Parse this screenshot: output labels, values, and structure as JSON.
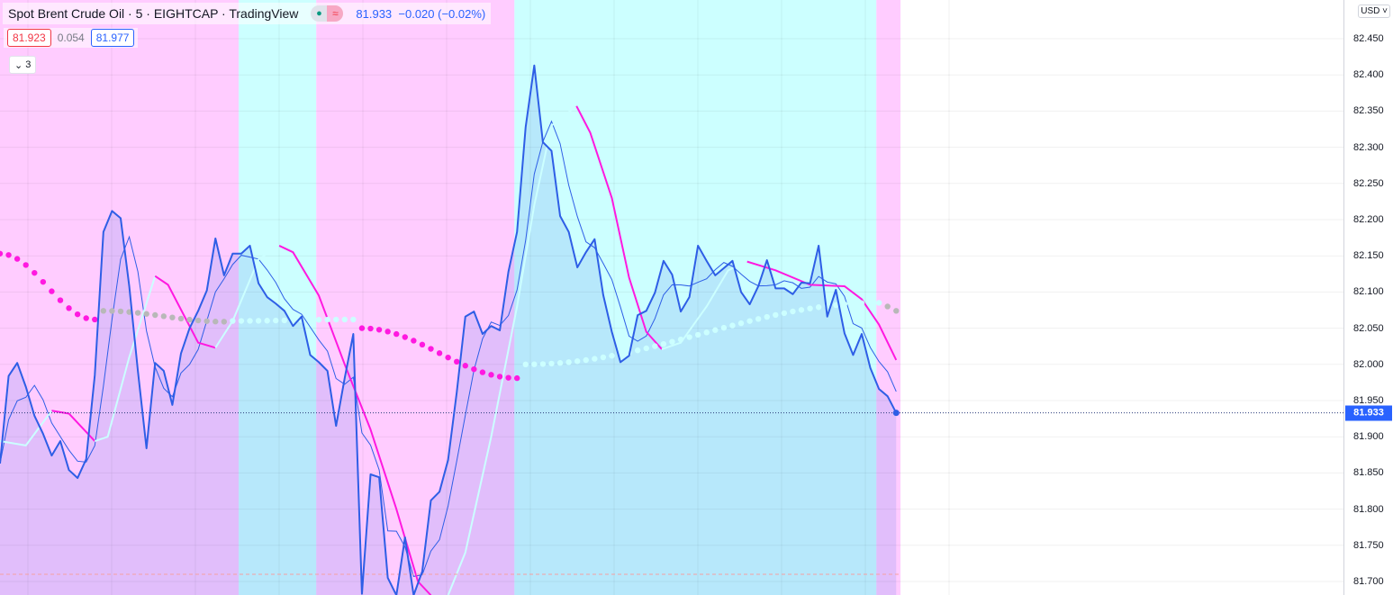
{
  "header": {
    "symbol_title": "Spot Brent Crude Oil · 5 · EIGHTCAP · TradingView",
    "status_icons": [
      "market-open-dot-icon",
      "delayed-data-icon"
    ],
    "delayed_glyph": "≈",
    "last_price": "81.933",
    "change": "−0.020 (−0.02%)",
    "sell_price": "81.923",
    "spread": "0.054",
    "buy_price": "81.977",
    "indicators_toggle": "3",
    "currency": "USD"
  },
  "colors": {
    "main_line": "#2e5ee6",
    "pink_zone": "#ffccff",
    "cyan_zone": "#ccffff",
    "magenta": "#ff19e0",
    "cyan": "#1ee8f0",
    "gray_dots": "#b8b8b8",
    "last_price_badge": "#2962ff",
    "red_line": "#f5a0a0"
  },
  "chart_data": {
    "type": "line",
    "title": "Spot Brent Crude Oil · 5 · EIGHTCAP · TradingView",
    "ylim": [
      81.69,
      82.5
    ],
    "y_ticks": [
      "82.450",
      "82.400",
      "82.350",
      "82.300",
      "82.250",
      "82.200",
      "82.150",
      "82.100",
      "82.050",
      "82.000",
      "81.950",
      "81.900",
      "81.850",
      "81.800",
      "81.750",
      "81.700"
    ],
    "grid": true,
    "last_price_line": 81.933,
    "red_level_line": 81.71,
    "close": [
      81.863,
      81.984,
      82.002,
      81.969,
      81.929,
      81.904,
      81.874,
      81.894,
      81.854,
      81.843,
      81.869,
      81.985,
      82.183,
      82.212,
      82.202,
      82.108,
      81.991,
      81.884,
      82.002,
      81.991,
      81.944,
      82.015,
      82.05,
      82.074,
      82.102,
      82.174,
      82.123,
      82.153,
      82.153,
      82.164,
      82.112,
      82.093,
      82.084,
      82.074,
      82.053,
      82.066,
      82.013,
      82.003,
      81.991,
      81.915,
      81.981,
      82.042,
      81.683,
      81.848,
      81.844,
      81.705,
      81.681,
      81.761,
      81.681,
      81.714,
      81.812,
      81.824,
      81.868,
      81.961,
      82.066,
      82.073,
      82.042,
      82.053,
      82.047,
      82.128,
      82.183,
      82.328,
      82.413,
      82.307,
      82.295,
      82.205,
      82.183,
      82.134,
      82.155,
      82.173,
      82.096,
      82.045,
      82.003,
      82.012,
      82.068,
      82.074,
      82.099,
      82.143,
      82.124,
      82.073,
      82.093,
      82.164,
      82.143,
      82.123,
      82.133,
      82.143,
      82.1,
      82.083,
      82.108,
      82.144,
      82.105,
      82.105,
      82.097,
      82.113,
      82.112,
      82.164,
      82.066,
      82.103,
      82.043,
      82.013,
      82.042,
      81.995,
      81.966,
      81.956,
      81.933
    ],
    "background_zones": [
      {
        "from": 0,
        "to": 27.7,
        "color": "pink"
      },
      {
        "from": 27.7,
        "to": 36.7,
        "color": "cyan"
      },
      {
        "from": 36.7,
        "to": 59.7,
        "color": "pink"
      },
      {
        "from": 59.7,
        "to": 101.7,
        "color": "cyan"
      },
      {
        "from": 101.7,
        "to": 104.5,
        "color": "pink"
      }
    ],
    "smooth_line": [
      {
        "color": "cyan",
        "points": [
          [
            0,
            81.894
          ],
          [
            3,
            81.888
          ],
          [
            6,
            81.936
          ]
        ]
      },
      {
        "color": "magenta",
        "points": [
          [
            6,
            81.936
          ],
          [
            8,
            81.932
          ],
          [
            11,
            81.894
          ]
        ]
      },
      {
        "color": "cyan",
        "points": [
          [
            11,
            81.894
          ],
          [
            12.5,
            81.9
          ],
          [
            15,
            82.01
          ],
          [
            18,
            82.122
          ]
        ]
      },
      {
        "color": "magenta",
        "points": [
          [
            18,
            82.122
          ],
          [
            19.5,
            82.11
          ],
          [
            23,
            82.03
          ],
          [
            25,
            82.023
          ]
        ]
      },
      {
        "color": "cyan",
        "points": [
          [
            25,
            82.023
          ],
          [
            27,
            82.06
          ],
          [
            30,
            82.145
          ],
          [
            32.4,
            82.164
          ]
        ]
      },
      {
        "color": "magenta",
        "points": [
          [
            32.4,
            82.164
          ],
          [
            34,
            82.155
          ],
          [
            37,
            82.095
          ],
          [
            40,
            82.0
          ],
          [
            43,
            81.91
          ],
          [
            46,
            81.8
          ],
          [
            48.5,
            81.7
          ],
          [
            50,
            81.681
          ]
        ]
      },
      {
        "color": "cyan",
        "points": [
          [
            52,
            81.681
          ],
          [
            54,
            81.74
          ],
          [
            57,
            81.9
          ],
          [
            60,
            82.08
          ],
          [
            62,
            82.22
          ],
          [
            64,
            82.33
          ],
          [
            66.9,
            82.357
          ]
        ]
      },
      {
        "color": "magenta",
        "points": [
          [
            66.9,
            82.357
          ],
          [
            68.5,
            82.32
          ],
          [
            71,
            82.23
          ],
          [
            73,
            82.12
          ],
          [
            75,
            82.045
          ],
          [
            76.8,
            82.021
          ]
        ]
      },
      {
        "color": "cyan",
        "points": [
          [
            76.8,
            82.021
          ],
          [
            79,
            82.03
          ],
          [
            82,
            82.08
          ],
          [
            84.5,
            82.13
          ],
          [
            86.7,
            82.142
          ]
        ]
      },
      {
        "color": "magenta",
        "points": [
          [
            86.7,
            82.142
          ],
          [
            90,
            82.13
          ],
          [
            94,
            82.11
          ],
          [
            98,
            82.108
          ],
          [
            100,
            82.09
          ],
          [
            102,
            82.055
          ],
          [
            104,
            82.006
          ]
        ]
      }
    ],
    "dots_line": [
      {
        "color": "magenta",
        "from": 0,
        "to": 11,
        "start": 82.153,
        "end": 82.062
      },
      {
        "color": "gray",
        "from": 12,
        "to": 26,
        "start": 82.074,
        "end": 82.059
      },
      {
        "color": "cyan",
        "from": 27,
        "to": 41,
        "start": 82.06,
        "end": 82.062
      },
      {
        "color": "magenta",
        "from": 42,
        "to": 60,
        "start": 82.05,
        "end": 81.981
      },
      {
        "color": "cyan",
        "from": 61,
        "to": 102,
        "start": 82.0,
        "end": 82.085
      },
      {
        "color": "gray",
        "from": 103,
        "to": 104,
        "start": 82.08,
        "end": 82.074
      }
    ]
  }
}
